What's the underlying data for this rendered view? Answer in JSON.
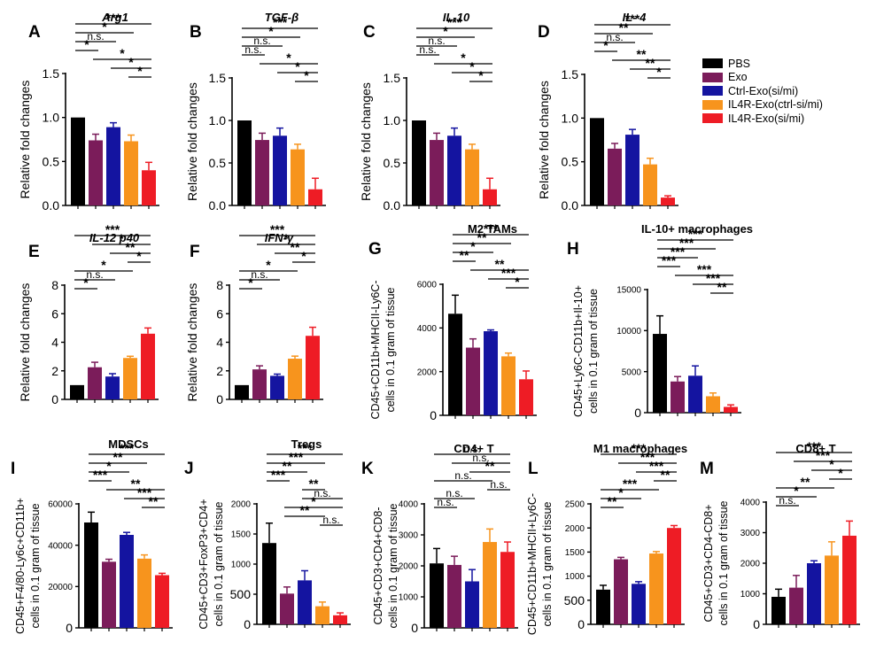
{
  "colors": {
    "PBS": "#000000",
    "Exo": "#7B1C5A",
    "Ctrl-Exo(si/mi)": "#1414A0",
    "IL4R-Exo(ctrl-si/mi)": "#F7941D",
    "IL4R-Exo(si/mi)": "#EE1C25"
  },
  "legend": {
    "items": [
      {
        "label": "PBS",
        "color": "#000000"
      },
      {
        "label": "Exo",
        "color": "#7B1C5A"
      },
      {
        "label": "Ctrl-Exo(si/mi)",
        "color": "#1414A0"
      },
      {
        "label": "IL4R-Exo(ctrl-si/mi)",
        "color": "#F7941D"
      },
      {
        "label": "IL4R-Exo(si/mi)",
        "color": "#EE1C25"
      }
    ]
  },
  "chart_data": [
    {
      "type": "bar",
      "letter": "A",
      "title": "Arg1",
      "title_style": "italic",
      "ylabel": "Relative fold changes",
      "ylim": [
        0,
        1.5
      ],
      "yticks": [
        0.0,
        0.5,
        1.0,
        1.5
      ],
      "ytick_labels": [
        "0.0",
        "0.5",
        "1.0",
        "1.5"
      ],
      "values": [
        1.0,
        0.74,
        0.89,
        0.73,
        0.4
      ],
      "errors": [
        0,
        0.07,
        0.05,
        0.07,
        0.09
      ],
      "significance": [
        {
          "from": 0,
          "to": 4,
          "label": "***"
        },
        {
          "from": 0,
          "to": 3,
          "label": "*"
        },
        {
          "from": 0,
          "to": 2,
          "label": "n.s."
        },
        {
          "from": 0,
          "to": 1,
          "label": "*"
        },
        {
          "from": 1,
          "to": 4,
          "label": "*"
        },
        {
          "from": 2,
          "to": 4,
          "label": "*"
        },
        {
          "from": 3,
          "to": 4,
          "label": "*"
        }
      ]
    },
    {
      "type": "bar",
      "letter": "B",
      "title": "TGF-β",
      "title_style": "italic",
      "ylabel": "Relative fold changes",
      "ylim": [
        0,
        1.5
      ],
      "yticks": [
        0.0,
        0.5,
        1.0,
        1.5
      ],
      "ytick_labels": [
        "0.0",
        "0.5",
        "1.0",
        "1.5"
      ],
      "values": [
        1.0,
        0.77,
        0.82,
        0.66,
        0.19
      ],
      "errors": [
        0,
        0.08,
        0.09,
        0.06,
        0.13
      ],
      "significance": [
        {
          "from": 0,
          "to": 4,
          "label": "***"
        },
        {
          "from": 0,
          "to": 3,
          "label": "*"
        },
        {
          "from": 0,
          "to": 2,
          "label": "n.s."
        },
        {
          "from": 0,
          "to": 1,
          "label": "n.s."
        },
        {
          "from": 1,
          "to": 4,
          "label": "*"
        },
        {
          "from": 2,
          "to": 4,
          "label": "*"
        },
        {
          "from": 3,
          "to": 4,
          "label": "*"
        }
      ]
    },
    {
      "type": "bar",
      "letter": "C",
      "title": "IL-10",
      "title_style": "italic",
      "ylabel": "Relative fold changes",
      "ylim": [
        0,
        1.5
      ],
      "yticks": [
        0.0,
        0.5,
        1.0,
        1.5
      ],
      "ytick_labels": [
        "0.0",
        "0.5",
        "1.0",
        "1.5"
      ],
      "values": [
        1.0,
        0.77,
        0.82,
        0.66,
        0.19
      ],
      "errors": [
        0,
        0.08,
        0.09,
        0.06,
        0.13
      ],
      "significance": [
        {
          "from": 0,
          "to": 4,
          "label": "***"
        },
        {
          "from": 0,
          "to": 3,
          "label": "*"
        },
        {
          "from": 0,
          "to": 2,
          "label": "n.s."
        },
        {
          "from": 0,
          "to": 1,
          "label": "n.s."
        },
        {
          "from": 1,
          "to": 4,
          "label": "*"
        },
        {
          "from": 2,
          "to": 4,
          "label": "*"
        },
        {
          "from": 3,
          "to": 4,
          "label": "*"
        }
      ]
    },
    {
      "type": "bar",
      "letter": "D",
      "title": "IL- 4",
      "title_style": "italic",
      "ylabel": "Relative fold changes",
      "ylim": [
        0,
        1.5
      ],
      "yticks": [
        0.0,
        0.5,
        1.0,
        1.5
      ],
      "ytick_labels": [
        "0.0",
        "0.5",
        "1.0",
        "1.5"
      ],
      "values": [
        1.0,
        0.65,
        0.81,
        0.47,
        0.09
      ],
      "errors": [
        0,
        0.06,
        0.06,
        0.07,
        0.02
      ],
      "significance": [
        {
          "from": 0,
          "to": 4,
          "label": "***"
        },
        {
          "from": 0,
          "to": 3,
          "label": "**"
        },
        {
          "from": 0,
          "to": 2,
          "label": "n.s."
        },
        {
          "from": 0,
          "to": 1,
          "label": "*"
        },
        {
          "from": 1,
          "to": 4,
          "label": "**"
        },
        {
          "from": 2,
          "to": 4,
          "label": "**"
        },
        {
          "from": 3,
          "to": 4,
          "label": "*"
        }
      ]
    },
    {
      "type": "bar",
      "letter": "E",
      "title": "IL-12 p40",
      "title_style": "italic",
      "ylabel": "Relative fold changes",
      "ylim": [
        0,
        8
      ],
      "yticks": [
        0,
        2,
        4,
        6,
        8
      ],
      "ytick_labels": [
        "0",
        "2",
        "4",
        "6",
        "8"
      ],
      "values": [
        1.0,
        2.25,
        1.6,
        2.9,
        4.6
      ],
      "errors": [
        0,
        0.35,
        0.2,
        0.12,
        0.4
      ],
      "significance": [
        {
          "from": 0,
          "to": 4,
          "label": "***"
        },
        {
          "from": 1,
          "to": 4,
          "label": "*"
        },
        {
          "from": 2,
          "to": 4,
          "label": "**"
        },
        {
          "from": 3,
          "to": 4,
          "label": "*"
        },
        {
          "from": 0,
          "to": 3,
          "label": "*"
        },
        {
          "from": 0,
          "to": 2,
          "label": "n.s."
        },
        {
          "from": 0,
          "to": 1,
          "label": "*"
        }
      ]
    },
    {
      "type": "bar",
      "letter": "F",
      "title": "IFN-γ",
      "title_style": "italic",
      "ylabel": "Relative fold changes",
      "ylim": [
        0,
        8
      ],
      "yticks": [
        0,
        2,
        4,
        6,
        8
      ],
      "ytick_labels": [
        "0",
        "2",
        "4",
        "6",
        "8"
      ],
      "values": [
        1.0,
        2.1,
        1.65,
        2.85,
        4.45
      ],
      "errors": [
        0,
        0.25,
        0.12,
        0.18,
        0.6
      ],
      "significance": [
        {
          "from": 0,
          "to": 4,
          "label": "***"
        },
        {
          "from": 1,
          "to": 4,
          "label": "*"
        },
        {
          "from": 2,
          "to": 4,
          "label": "**"
        },
        {
          "from": 3,
          "to": 4,
          "label": "*"
        },
        {
          "from": 0,
          "to": 3,
          "label": "*"
        },
        {
          "from": 0,
          "to": 2,
          "label": "n.s."
        },
        {
          "from": 0,
          "to": 1,
          "label": "*"
        }
      ]
    },
    {
      "type": "bar",
      "letter": "G",
      "title": "M2 TAMs",
      "title_style": "bold",
      "ylabel": "CD45+CD11b+MHCII-Ly6C-",
      "ylabel2": "cells in 0.1 gram of tissue",
      "ylim": [
        0,
        6000
      ],
      "yticks": [
        0,
        2000,
        4000,
        6000
      ],
      "ytick_labels": [
        "0",
        "2000",
        "4000",
        "6000"
      ],
      "values": [
        4650,
        3100,
        3850,
        2700,
        1650
      ],
      "errors": [
        850,
        400,
        60,
        150,
        380
      ],
      "significance": [
        {
          "from": 0,
          "to": 4,
          "label": "***"
        },
        {
          "from": 0,
          "to": 3,
          "label": "**"
        },
        {
          "from": 0,
          "to": 2,
          "label": "*"
        },
        {
          "from": 0,
          "to": 1,
          "label": "**"
        },
        {
          "from": 1,
          "to": 4,
          "label": "**"
        },
        {
          "from": 2,
          "to": 4,
          "label": "***"
        },
        {
          "from": 3,
          "to": 4,
          "label": "*"
        }
      ]
    },
    {
      "type": "bar",
      "letter": "H",
      "title": "IL-10+ macrophages",
      "title_style": "bold",
      "ylabel": "CD45+Ly6C-CD11b+Il-10+",
      "ylabel2": "cells in 0.1 gram of tissue",
      "ylim": [
        0,
        15000
      ],
      "yticks": [
        0,
        5000,
        10000,
        15000
      ],
      "ytick_labels": [
        "0",
        "5000",
        "10000",
        "15000"
      ],
      "values": [
        9600,
        3800,
        4500,
        2000,
        700
      ],
      "errors": [
        2200,
        600,
        1200,
        400,
        250
      ],
      "significance": [
        {
          "from": 0,
          "to": 4,
          "label": "***"
        },
        {
          "from": 0,
          "to": 3,
          "label": "***"
        },
        {
          "from": 0,
          "to": 2,
          "label": "***"
        },
        {
          "from": 0,
          "to": 1,
          "label": "***"
        },
        {
          "from": 1,
          "to": 4,
          "label": "***"
        },
        {
          "from": 2,
          "to": 4,
          "label": "***"
        },
        {
          "from": 3,
          "to": 4,
          "label": "**"
        }
      ]
    },
    {
      "type": "bar",
      "letter": "I",
      "title": "MDSCs",
      "title_style": "bold",
      "ylabel": "CD45+F4/80-Ly6c+CD11b+",
      "ylabel2": "cells in 0.1 gram of tissue",
      "ylim": [
        0,
        60000
      ],
      "yticks": [
        0,
        20000,
        40000,
        60000
      ],
      "ytick_labels": [
        "0",
        "20000",
        "40000",
        "60000"
      ],
      "values": [
        51000,
        32000,
        45000,
        33500,
        25500
      ],
      "errors": [
        5000,
        1200,
        1200,
        1800,
        900
      ],
      "significance": [
        {
          "from": 0,
          "to": 4,
          "label": "***"
        },
        {
          "from": 0,
          "to": 3,
          "label": "**"
        },
        {
          "from": 0,
          "to": 2,
          "label": "*"
        },
        {
          "from": 0,
          "to": 1,
          "label": "***"
        },
        {
          "from": 1,
          "to": 4,
          "label": "**"
        },
        {
          "from": 2,
          "to": 4,
          "label": "***"
        },
        {
          "from": 3,
          "to": 4,
          "label": "**"
        }
      ]
    },
    {
      "type": "bar",
      "letter": "J",
      "title": "Tregs",
      "title_style": "bold",
      "ylabel": "CD45+CD3+FoxP3+CD4+",
      "ylabel2": "cells in 0.1 gram of tissue",
      "ylim": [
        0,
        2000
      ],
      "yticks": [
        0,
        500,
        1000,
        1500,
        2000
      ],
      "ytick_labels": [
        "0",
        "500",
        "1000",
        "1500",
        "2000"
      ],
      "values": [
        1350,
        510,
        730,
        300,
        150
      ],
      "errors": [
        330,
        110,
        160,
        70,
        40
      ],
      "significance": [
        {
          "from": 0,
          "to": 4,
          "label": "***"
        },
        {
          "from": 0,
          "to": 3,
          "label": "***"
        },
        {
          "from": 0,
          "to": 2,
          "label": "**"
        },
        {
          "from": 0,
          "to": 1,
          "label": "***"
        },
        {
          "from": 2,
          "to": 3,
          "label": "**"
        },
        {
          "from": 2,
          "to": 4,
          "label": "n.s."
        },
        {
          "from": 1,
          "to": 4,
          "label": "*"
        },
        {
          "from": 1,
          "to": 3,
          "label": "**"
        },
        {
          "from": 3,
          "to": 4,
          "label": "n.s."
        }
      ]
    },
    {
      "type": "bar",
      "letter": "K",
      "title": "CD4+ T",
      "title_style": "bold",
      "ylabel": "CD45+CD3+CD4+CD8-",
      "ylabel2": "cells in 0.1 gram of tissue",
      "ylim": [
        0,
        4000
      ],
      "yticks": [
        0,
        1000,
        2000,
        3000,
        4000
      ],
      "ytick_labels": [
        "0",
        "1000",
        "2000",
        "3000",
        "4000"
      ],
      "values": [
        2080,
        2030,
        1500,
        2770,
        2450
      ],
      "errors": [
        480,
        280,
        380,
        420,
        320
      ],
      "significance": [
        {
          "from": 0,
          "to": 4,
          "label": "n.s."
        },
        {
          "from": 1,
          "to": 4,
          "label": "n.s."
        },
        {
          "from": 2,
          "to": 4,
          "label": "**"
        },
        {
          "from": 0,
          "to": 3,
          "label": "n.s."
        },
        {
          "from": 3,
          "to": 4,
          "label": "n.s."
        },
        {
          "from": 0,
          "to": 2,
          "label": "n.s."
        },
        {
          "from": 0,
          "to": 1,
          "label": "n.s."
        }
      ]
    },
    {
      "type": "bar",
      "letter": "L",
      "title": "M1 macrophages",
      "title_style": "bold",
      "ylabel": "CD45+CD11b+MHCII+Ly6C-",
      "ylabel2": "cells in 0.1 gram of tissue",
      "ylim": [
        0,
        2500
      ],
      "yticks": [
        0,
        500,
        1000,
        1500,
        2000,
        2500
      ],
      "ytick_labels": [
        "0",
        "500",
        "1000",
        "1500",
        "2000",
        "2500"
      ],
      "values": [
        720,
        1350,
        840,
        1470,
        2000
      ],
      "errors": [
        90,
        40,
        45,
        40,
        50
      ],
      "significance": [
        {
          "from": 0,
          "to": 4,
          "label": "***"
        },
        {
          "from": 1,
          "to": 4,
          "label": "***"
        },
        {
          "from": 2,
          "to": 4,
          "label": "***"
        },
        {
          "from": 3,
          "to": 4,
          "label": "**"
        },
        {
          "from": 0,
          "to": 3,
          "label": "***"
        },
        {
          "from": 0,
          "to": 2,
          "label": "*"
        },
        {
          "from": 0,
          "to": 1,
          "label": "**"
        }
      ]
    },
    {
      "type": "bar",
      "letter": "M",
      "title": "CD8+ T",
      "title_style": "bold",
      "ylabel": "CD45+CD3+CD4-CD8+",
      "ylabel2": "cells in 0.1 gram of tissue",
      "ylim": [
        0,
        4000
      ],
      "yticks": [
        0,
        1000,
        2000,
        3000,
        4000
      ],
      "ytick_labels": [
        "0",
        "1000",
        "2000",
        "3000",
        "4000"
      ],
      "values": [
        900,
        1200,
        2000,
        2250,
        2900
      ],
      "errors": [
        250,
        400,
        80,
        450,
        480
      ],
      "significance": [
        {
          "from": 0,
          "to": 4,
          "label": "***"
        },
        {
          "from": 1,
          "to": 4,
          "label": "***"
        },
        {
          "from": 2,
          "to": 4,
          "label": "*"
        },
        {
          "from": 3,
          "to": 4,
          "label": "*"
        },
        {
          "from": 0,
          "to": 3,
          "label": "**"
        },
        {
          "from": 0,
          "to": 2,
          "label": "*"
        },
        {
          "from": 0,
          "to": 1,
          "label": "n.s."
        }
      ]
    }
  ]
}
